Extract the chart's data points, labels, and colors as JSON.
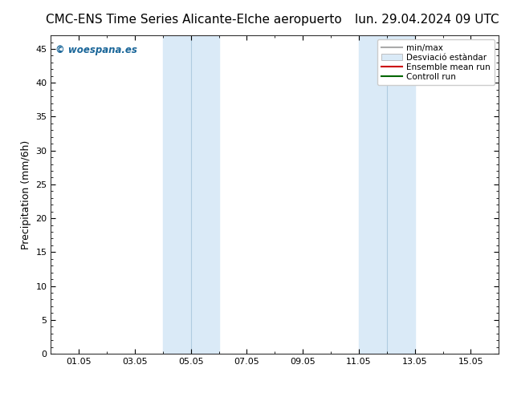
{
  "title_left": "CMC-ENS Time Series Alicante-Elche aeropuerto",
  "title_right": "lun. 29.04.2024 09 UTC",
  "ylabel": "Precipitation (mm/6h)",
  "ylim": [
    0,
    47
  ],
  "yticks": [
    0,
    5,
    10,
    15,
    20,
    25,
    30,
    35,
    40,
    45
  ],
  "watermark": "© woespana.es",
  "watermark_color": "#1a6699",
  "background_color": "#ffffff",
  "plot_bg_color": "#ffffff",
  "shaded_bands": [
    {
      "xmin": 4.0,
      "xmax": 5.0,
      "color": "#daeaf7"
    },
    {
      "xmin": 5.0,
      "xmax": 6.0,
      "color": "#daeaf7"
    },
    {
      "xmin": 11.0,
      "xmax": 12.0,
      "color": "#daeaf7"
    },
    {
      "xmin": 12.0,
      "xmax": 13.0,
      "color": "#daeaf7"
    }
  ],
  "band_dividers": [
    5.0,
    12.0
  ],
  "xtick_labels": [
    "01.05",
    "03.05",
    "05.05",
    "07.05",
    "09.05",
    "11.05",
    "13.05",
    "15.05"
  ],
  "xtick_positions": [
    1,
    3,
    5,
    7,
    9,
    11,
    13,
    15
  ],
  "xlim": [
    0,
    16
  ],
  "legend_labels": [
    "min/max",
    "Desviació estàndar",
    "Ensemble mean run",
    "Controll run"
  ],
  "minmax_color": "#aaaaaa",
  "std_color": "#daeaf7",
  "std_edge_color": "#aaaaaa",
  "ens_color": "#cc0000",
  "ctrl_color": "#006600",
  "title_fontsize": 11,
  "tick_fontsize": 8,
  "ylabel_fontsize": 9,
  "legend_fontsize": 7.5
}
